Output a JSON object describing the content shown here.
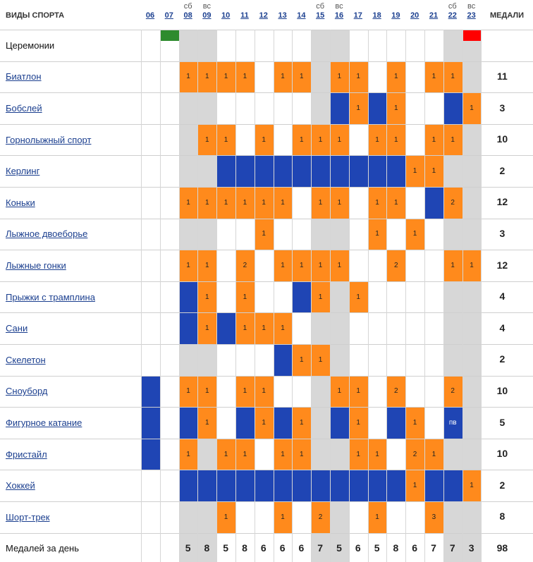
{
  "header": {
    "sports_label": "ВИДЫ СПОРТА",
    "medals_label": "МЕДАЛИ",
    "days": [
      "06",
      "07",
      "08",
      "09",
      "10",
      "11",
      "12",
      "13",
      "14",
      "15",
      "16",
      "17",
      "18",
      "19",
      "20",
      "21",
      "22",
      "23"
    ],
    "weekdays": [
      "",
      "",
      "сб",
      "вс",
      "",
      "",
      "",
      "",
      "",
      "сб",
      "вс",
      "",
      "",
      "",
      "",
      "",
      "сб",
      "вс"
    ]
  },
  "weekend_columns": [
    2,
    3,
    9,
    10,
    16,
    17
  ],
  "colors": {
    "medal": "#ff8a1c",
    "event": "#1f45b4",
    "weekend": "#d7d7d7",
    "opening": "#2e8b2e",
    "closing": "#ff0000"
  },
  "ceremonies": {
    "label": "Церемонии",
    "opening_day_index": 1,
    "closing_day_index": 17
  },
  "sports": [
    {
      "name": "Биатлон",
      "total": "11",
      "cells": [
        "",
        "",
        "1",
        "1",
        "1",
        "1",
        "",
        "1",
        "1",
        "",
        "1",
        "1",
        "",
        "1",
        "",
        "1",
        "1",
        ""
      ]
    },
    {
      "name": "Бобслей",
      "total": "3",
      "cells": [
        "",
        "",
        "",
        "",
        "",
        "",
        "",
        "",
        "",
        "",
        "B",
        "1",
        "B",
        "1",
        "",
        "",
        "B",
        "1"
      ]
    },
    {
      "name": "Горнолыжный спорт",
      "total": "10",
      "cells": [
        "",
        "",
        "",
        "1",
        "1",
        "",
        "1",
        "",
        "1",
        "1",
        "1",
        "",
        "1",
        "1",
        "",
        "1",
        "1",
        ""
      ]
    },
    {
      "name": "Керлинг",
      "total": "2",
      "cells": [
        "",
        "",
        "",
        "",
        "B",
        "B",
        "B",
        "B",
        "B",
        "B",
        "B",
        "B",
        "B",
        "B",
        "1",
        "1",
        "",
        ""
      ]
    },
    {
      "name": "Коньки",
      "total": "12",
      "cells": [
        "",
        "",
        "1",
        "1",
        "1",
        "1",
        "1",
        "1",
        "",
        "1",
        "1",
        "",
        "1",
        "1",
        "",
        "B",
        "2",
        ""
      ]
    },
    {
      "name": "Лыжное двоеборье",
      "total": "3",
      "cells": [
        "",
        "",
        "",
        "",
        "",
        "",
        "1",
        "",
        "",
        "",
        "",
        "",
        "1",
        "",
        "1",
        "",
        "",
        ""
      ]
    },
    {
      "name": "Лыжные гонки",
      "total": "12",
      "cells": [
        "",
        "",
        "1",
        "1",
        "",
        "2",
        "",
        "1",
        "1",
        "1",
        "1",
        "",
        "",
        "2",
        "",
        "",
        "1",
        "1"
      ]
    },
    {
      "name": "Прыжки с трамплина",
      "total": "4",
      "cells": [
        "",
        "",
        "B",
        "1",
        "",
        "1",
        "",
        "",
        "B",
        "1",
        "",
        "1",
        "",
        "",
        "",
        "",
        "",
        ""
      ]
    },
    {
      "name": "Сани",
      "total": "4",
      "cells": [
        "",
        "",
        "B",
        "1",
        "B",
        "1",
        "1",
        "1",
        "",
        "",
        "",
        "",
        "",
        "",
        "",
        "",
        "",
        ""
      ]
    },
    {
      "name": "Скелетон",
      "total": "2",
      "cells": [
        "",
        "",
        "",
        "",
        "",
        "",
        "",
        "B",
        "1",
        "1",
        "",
        "",
        "",
        "",
        "",
        "",
        "",
        ""
      ]
    },
    {
      "name": "Сноуборд",
      "total": "10",
      "cells": [
        "B",
        "",
        "1",
        "1",
        "",
        "1",
        "1",
        "",
        "",
        "",
        "1",
        "1",
        "",
        "2",
        "",
        "",
        "2",
        ""
      ]
    },
    {
      "name": "Фигурное катание",
      "total": "5",
      "cells": [
        "B",
        "",
        "B",
        "1",
        "",
        "B",
        "1",
        "B",
        "1",
        "",
        "B",
        "1",
        "",
        "B",
        "1",
        "",
        "пв",
        ""
      ]
    },
    {
      "name": "Фристайл",
      "total": "10",
      "cells": [
        "B",
        "",
        "1",
        "",
        "1",
        "1",
        "",
        "1",
        "1",
        "",
        "",
        "1",
        "1",
        "",
        "2",
        "1",
        "",
        ""
      ]
    },
    {
      "name": "Хоккей",
      "total": "2",
      "cells": [
        "",
        "",
        "B",
        "B",
        "B",
        "B",
        "B",
        "B",
        "B",
        "B",
        "B",
        "B",
        "B",
        "B",
        "1",
        "B",
        "B",
        "1"
      ]
    },
    {
      "name": "Шорт-трек",
      "total": "8",
      "cells": [
        "",
        "",
        "",
        "",
        "1",
        "",
        "",
        "1",
        "",
        "2",
        "",
        "",
        "1",
        "",
        "",
        "3",
        "",
        ""
      ]
    }
  ],
  "footer": {
    "label": "Медалей за день",
    "counts": [
      "",
      "",
      "5",
      "8",
      "5",
      "8",
      "6",
      "6",
      "6",
      "7",
      "5",
      "6",
      "5",
      "8",
      "6",
      "7",
      "7",
      "3"
    ],
    "grand_total": "98"
  }
}
